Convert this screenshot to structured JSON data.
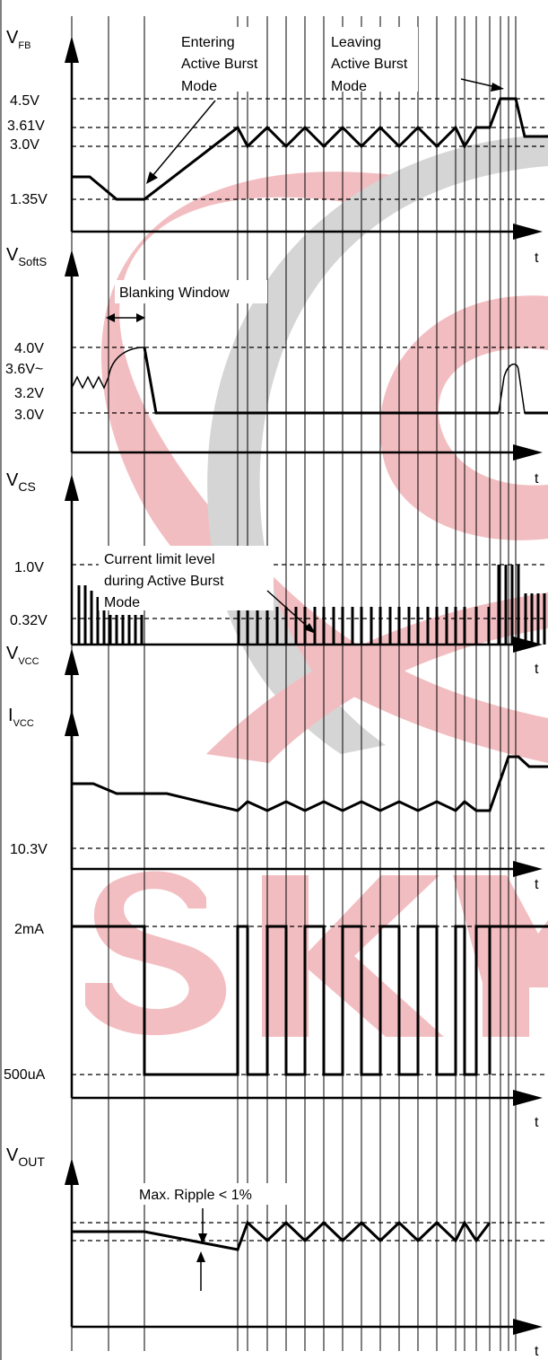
{
  "panels": [
    {
      "id": "vfb",
      "name": "V",
      "sub": "FB",
      "levels": [
        "4.5V",
        "3.61V",
        "3.0V",
        "1.35V"
      ]
    },
    {
      "id": "vsofts",
      "name": "V",
      "sub": "SoftS",
      "levels": [
        "4.0V",
        "3.6V~",
        "3.2V",
        "3.0V"
      ]
    },
    {
      "id": "vcs",
      "name": "V",
      "sub": "CS",
      "levels": [
        "1.0V",
        "0.32V"
      ]
    },
    {
      "id": "vvcc",
      "name": "V",
      "sub": "VCC",
      "levels": [
        "10.3V"
      ]
    },
    {
      "id": "ivcc",
      "name": "I",
      "sub": "VCC",
      "levels": [
        "2mA",
        "500uA"
      ]
    },
    {
      "id": "vout",
      "name": "V",
      "sub": "OUT",
      "levels": []
    }
  ],
  "time_label": "t",
  "annotations": {
    "entering": [
      "Entering",
      "Active Burst",
      "Mode"
    ],
    "leaving": [
      "Leaving",
      "Active Burst",
      "Mode"
    ],
    "blanking": "Blanking Window",
    "current_limit": [
      "Current limit level",
      "during Active Burst",
      "Mode"
    ],
    "ripple": "Max. Ripple < 1%"
  },
  "watermark": {
    "text": "SKY",
    "colors": [
      "#d9363e",
      "#808080"
    ]
  }
}
